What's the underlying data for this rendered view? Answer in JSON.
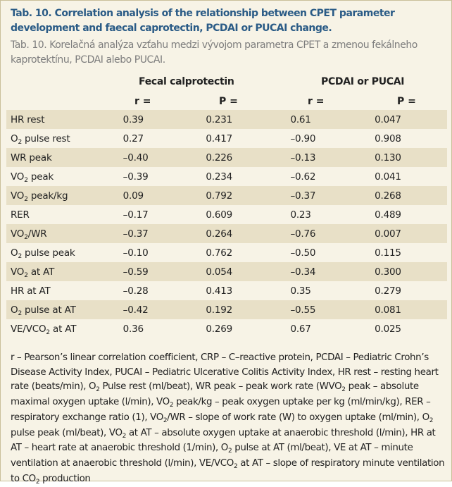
{
  "title_en": "Tab. 10. Correlation analysis of the relationship between CPET parameter development and faecal caprotectin, PCDAI or PUCAI change.",
  "title_sk": "Tab. 10. Korelačná analýza vzťahu medzi vývojom parametra CPET a zmenou fekálneho kaprotektínu, PCDAI alebo PUCAI.",
  "headers": {
    "group1": "Fecal calprotectin",
    "group2": "PCDAI or PUCAI",
    "r": "r =",
    "p": "P ="
  },
  "rows": [
    {
      "label": "HR rest",
      "r1": "0.39",
      "p1": "0.231",
      "r2": "0.61",
      "p2": "0.047"
    },
    {
      "label_pre": "O",
      "label_sub": "2",
      "label_post": " pulse rest",
      "r1": "0.27",
      "p1": "0.417",
      "r2": "–0.90",
      "p2": "0.908"
    },
    {
      "label": "WR peak",
      "r1": "–0.40",
      "p1": "0.226",
      "r2": "–0.13",
      "p2": "0.130"
    },
    {
      "label_pre": "VO",
      "label_sub": "2",
      "label_post": " peak",
      "r1": "–0.39",
      "p1": "0.234",
      "r2": "–0.62",
      "p2": "0.041"
    },
    {
      "label_pre": "VO",
      "label_sub": "2",
      "label_post": " peak/kg",
      "r1": "0.09",
      "p1": "0.792",
      "r2": "–0.37",
      "p2": "0.268"
    },
    {
      "label": "RER",
      "r1": "–0.17",
      "p1": "0.609",
      "r2": "0.23",
      "p2": "0.489"
    },
    {
      "label_pre": "VO",
      "label_sub": "2",
      "label_post": "/WR",
      "r1": "–0.37",
      "p1": "0.264",
      "r2": "–0.76",
      "p2": "0.007"
    },
    {
      "label_pre": "O",
      "label_sub": "2",
      "label_post": " pulse peak",
      "r1": "–0.10",
      "p1": "0.762",
      "r2": "–0.50",
      "p2": "0.115"
    },
    {
      "label_pre": "VO",
      "label_sub": "2",
      "label_post": " at AT",
      "r1": "–0.59",
      "p1": "0.054",
      "r2": "–0.34",
      "p2": "0.300"
    },
    {
      "label": "HR at AT",
      "r1": "–0.28",
      "p1": "0.413",
      "r2": "0.35",
      "p2": "0.279"
    },
    {
      "label_pre": "O",
      "label_sub": "2",
      "label_post": " pulse at AT",
      "r1": "–0.42",
      "p1": "0.192",
      "r2": "–0.55",
      "p2": "0.081"
    },
    {
      "label_pre": "VE/VCO",
      "label_sub": "2",
      "label_post": " at AT",
      "r1": "0.36",
      "p1": "0.269",
      "r2": "0.67",
      "p2": "0.025"
    }
  ],
  "footnote": [
    "r – Pearson’s linear correlation coefficient, CRP – C–reactive protein, PCDAI – Pediatric Crohn’s Disease Activity Index, PUCAI – Pediatric Ulcerative Colitis Activity Index, HR rest – resting heart rate (beats/min), O",
    "2",
    " Pulse rest (ml/beat), WR peak – peak work rate (WVO",
    "2",
    " peak – absolute maximal oxygen uptake (l/min), VO",
    "2",
    " peak/kg – peak oxygen uptake per kg (ml/min/kg), RER – respiratory exchange ratio (1), VO",
    "2",
    "/WR – slope of work rate (W) to oxygen uptake (ml/min), O",
    "2",
    " pulse peak (ml/beat), VO",
    "2",
    " at AT – absolute oxygen uptake at anaerobic threshold (l/min), HR at AT – heart rate at anaerobic threshold (1/min), O",
    "2",
    " pulse at AT (ml/beat), VE at AT – minute ventilation at anaerobic threshold (l/min), VE/VCO",
    "2",
    " at AT – slope of respiratory minute ventilation to CO",
    "2",
    " production"
  ]
}
